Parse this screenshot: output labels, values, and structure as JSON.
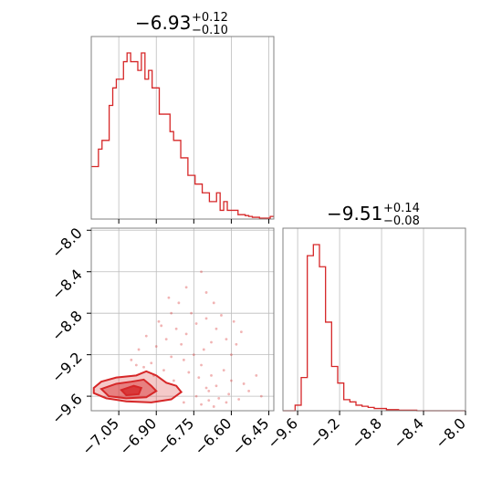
{
  "chart_data": {
    "type": "corner",
    "color": "#d62728",
    "parameters": [
      {
        "title": {
          "median": "−6.93",
          "plus": "+0.12",
          "minus": "−0.10"
        },
        "ticks": [
          "−7.05",
          "−6.90",
          "−6.75",
          "−6.60",
          "−6.45"
        ],
        "tick_values": [
          -7.05,
          -6.9,
          -6.75,
          -6.6,
          -6.45
        ],
        "range": [
          -7.16,
          -6.43
        ],
        "histogram_bins": [
          6,
          6,
          8,
          9,
          9,
          13,
          15,
          16,
          16,
          18,
          19,
          18,
          18,
          17,
          19,
          16,
          17,
          15,
          15,
          12,
          12,
          12,
          10,
          9,
          9,
          7,
          7,
          5,
          5,
          4,
          4,
          3,
          3,
          2,
          2,
          3,
          1,
          2,
          1,
          1,
          1,
          0.5,
          0.5,
          0.4,
          0.3,
          0.2,
          0.2,
          0.1,
          0.1,
          0.1,
          0.3
        ]
      },
      {
        "title": {
          "median": "−9.51",
          "plus": "+0.14",
          "minus": "−0.08"
        },
        "ticks": [
          "−9.6",
          "−9.2",
          "−8.8",
          "−8.4",
          "−8.0"
        ],
        "tick_values": [
          -9.6,
          -9.2,
          -8.8,
          -8.4,
          -8.0
        ],
        "range": [
          -9.74,
          -8.0
        ],
        "histogram_bins": [
          0,
          0,
          0.5,
          3,
          14,
          15,
          13,
          8,
          4,
          2.5,
          1,
          0.8,
          0.5,
          0.4,
          0.3,
          0.2,
          0.2,
          0.1,
          0.1,
          0.05,
          0.05,
          0.05,
          0,
          0,
          0,
          0,
          0,
          0,
          0,
          0
        ]
      }
    ],
    "scatter_2d": {
      "x_range": [
        -7.16,
        -6.43
      ],
      "y_range": [
        -9.74,
        -7.98
      ],
      "y_ticks": [
        "−8.0",
        "−8.4",
        "−8.8",
        "−9.2",
        "−9.6"
      ],
      "y_tick_values": [
        -8.0,
        -8.4,
        -8.8,
        -9.2,
        -9.6
      ],
      "points": [
        [
          -6.7,
          -9.52
        ],
        [
          -6.68,
          -9.4
        ],
        [
          -6.72,
          -9.3
        ],
        [
          -6.75,
          -9.2
        ],
        [
          -6.8,
          -9.1
        ],
        [
          -6.78,
          -9.0
        ],
        [
          -6.82,
          -8.95
        ],
        [
          -6.74,
          -8.9
        ],
        [
          -6.7,
          -8.85
        ],
        [
          -6.76,
          -8.8
        ],
        [
          -6.81,
          -8.7
        ],
        [
          -6.84,
          -8.8
        ],
        [
          -6.79,
          -9.25
        ],
        [
          -6.73,
          -9.42
        ],
        [
          -6.69,
          -9.55
        ],
        [
          -6.66,
          -9.5
        ],
        [
          -6.63,
          -9.35
        ],
        [
          -6.6,
          -9.2
        ],
        [
          -6.58,
          -9.1
        ],
        [
          -6.62,
          -9.05
        ],
        [
          -6.66,
          -8.95
        ],
        [
          -6.71,
          -9.15
        ],
        [
          -6.86,
          -9.05
        ],
        [
          -6.88,
          -8.92
        ],
        [
          -6.9,
          -9.12
        ],
        [
          -6.92,
          -9.28
        ],
        [
          -6.84,
          -9.22
        ],
        [
          -6.77,
          -9.37
        ],
        [
          -6.74,
          -9.6
        ],
        [
          -6.69,
          -9.64
        ],
        [
          -6.65,
          -9.62
        ],
        [
          -6.61,
          -9.58
        ],
        [
          -6.57,
          -9.63
        ],
        [
          -6.55,
          -9.48
        ],
        [
          -6.53,
          -9.55
        ],
        [
          -6.7,
          -8.6
        ],
        [
          -6.72,
          -8.4
        ],
        [
          -6.78,
          -8.55
        ],
        [
          -6.85,
          -8.65
        ],
        [
          -6.67,
          -8.7
        ],
        [
          -6.64,
          -8.82
        ],
        [
          -6.59,
          -8.88
        ],
        [
          -6.56,
          -8.98
        ],
        [
          -6.5,
          -9.4
        ],
        [
          -6.48,
          -9.6
        ],
        [
          -6.62,
          -9.66
        ],
        [
          -6.67,
          -9.7
        ],
        [
          -6.72,
          -9.68
        ],
        [
          -6.79,
          -9.66
        ],
        [
          -6.83,
          -9.45
        ],
        [
          -6.87,
          -9.35
        ],
        [
          -6.91,
          -9.4
        ],
        [
          -6.95,
          -9.32
        ],
        [
          -6.98,
          -9.3
        ],
        [
          -6.89,
          -8.88
        ],
        [
          -6.94,
          -9.02
        ],
        [
          -6.97,
          -9.15
        ],
        [
          -7.0,
          -9.25
        ],
        [
          -6.68,
          -9.08
        ],
        [
          -6.6,
          -9.45
        ]
      ],
      "contours": [
        {
          "level": "outer",
          "poly": [
            [
              -7.15,
              -9.52
            ],
            [
              -7.12,
              -9.46
            ],
            [
              -7.06,
              -9.42
            ],
            [
              -6.98,
              -9.4
            ],
            [
              -6.94,
              -9.36
            ],
            [
              -6.9,
              -9.4
            ],
            [
              -6.86,
              -9.47
            ],
            [
              -6.82,
              -9.5
            ],
            [
              -6.8,
              -9.56
            ],
            [
              -6.84,
              -9.63
            ],
            [
              -6.92,
              -9.66
            ],
            [
              -7.02,
              -9.65
            ],
            [
              -7.1,
              -9.62
            ],
            [
              -7.15,
              -9.57
            ]
          ]
        },
        {
          "level": "mid",
          "poly": [
            [
              -7.12,
              -9.53
            ],
            [
              -7.06,
              -9.48
            ],
            [
              -7.0,
              -9.46
            ],
            [
              -6.95,
              -9.44
            ],
            [
              -6.92,
              -9.5
            ],
            [
              -6.9,
              -9.55
            ],
            [
              -6.94,
              -9.61
            ],
            [
              -7.02,
              -9.62
            ],
            [
              -7.09,
              -9.6
            ]
          ]
        },
        {
          "level": "inner",
          "poly": [
            [
              -7.04,
              -9.54
            ],
            [
              -6.99,
              -9.5
            ],
            [
              -6.96,
              -9.52
            ],
            [
              -6.97,
              -9.58
            ],
            [
              -7.02,
              -9.59
            ]
          ]
        }
      ]
    }
  }
}
